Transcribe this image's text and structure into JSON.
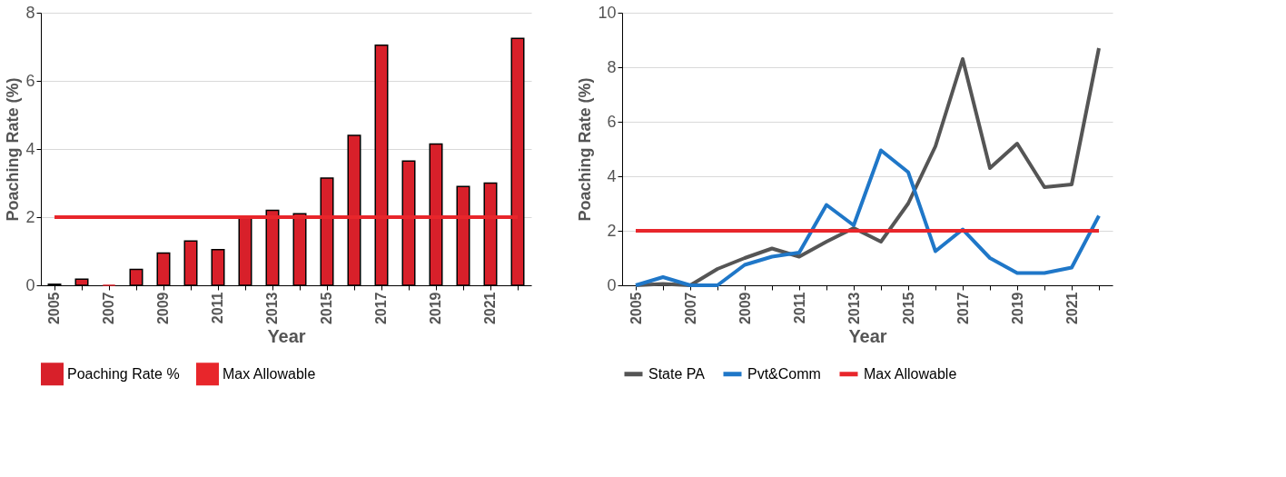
{
  "chart_data": [
    {
      "type": "bar",
      "xlabel": "Year",
      "ylabel": "Poaching Rate (%)",
      "categories": [
        "2005",
        null,
        "2007",
        null,
        "2009",
        null,
        "2011",
        null,
        "2013",
        null,
        "2015",
        null,
        "2017",
        null,
        "2019",
        null,
        "2021",
        null
      ],
      "series": [
        {
          "name": "Poaching Rate %",
          "color": "#d8202a",
          "type": "bar",
          "values": [
            0.03,
            0.18,
            0,
            0.47,
            0.95,
            1.3,
            1.05,
            2.0,
            2.2,
            2.1,
            3.15,
            4.4,
            7.05,
            3.65,
            4.15,
            2.9,
            3.0,
            7.25
          ]
        },
        {
          "name": "Max Allowable",
          "color": "#e8262b",
          "type": "line",
          "values": [
            2,
            2,
            2,
            2,
            2,
            2,
            2,
            2,
            2,
            2,
            2,
            2,
            2,
            2,
            2,
            2,
            2,
            2
          ]
        }
      ],
      "ylim": [
        0,
        8
      ],
      "yticks": [
        0,
        2,
        4,
        6,
        8
      ],
      "grid": "y",
      "legend": "bottom"
    },
    {
      "type": "line",
      "xlabel": "Year",
      "ylabel": "Poaching Rate (%)",
      "categories": [
        "2005",
        null,
        "2007",
        null,
        "2009",
        null,
        "2011",
        null,
        "2013",
        null,
        "2015",
        null,
        "2017",
        null,
        "2019",
        null,
        "2021",
        null
      ],
      "series": [
        {
          "name": "State PA",
          "color": "#555555",
          "values": [
            0,
            0.05,
            0,
            0.6,
            1.0,
            1.35,
            1.05,
            1.6,
            2.1,
            1.6,
            3.0,
            5.1,
            8.3,
            4.3,
            5.2,
            3.6,
            3.7,
            8.7
          ]
        },
        {
          "name": "Pvt&Comm",
          "color": "#1f77c8",
          "values": [
            0,
            0.3,
            0,
            0,
            0.75,
            1.05,
            1.2,
            2.95,
            2.2,
            4.95,
            4.15,
            1.25,
            2.05,
            1.0,
            0.45,
            0.45,
            0.65,
            2.55
          ]
        },
        {
          "name": "Max Allowable",
          "color": "#e8262b",
          "values": [
            2,
            2,
            2,
            2,
            2,
            2,
            2,
            2,
            2,
            2,
            2,
            2,
            2,
            2,
            2,
            2,
            2,
            2
          ]
        }
      ],
      "ylim": [
        0,
        10
      ],
      "yticks": [
        0,
        2,
        4,
        6,
        8,
        10
      ],
      "grid": "y",
      "legend": "bottom"
    }
  ]
}
